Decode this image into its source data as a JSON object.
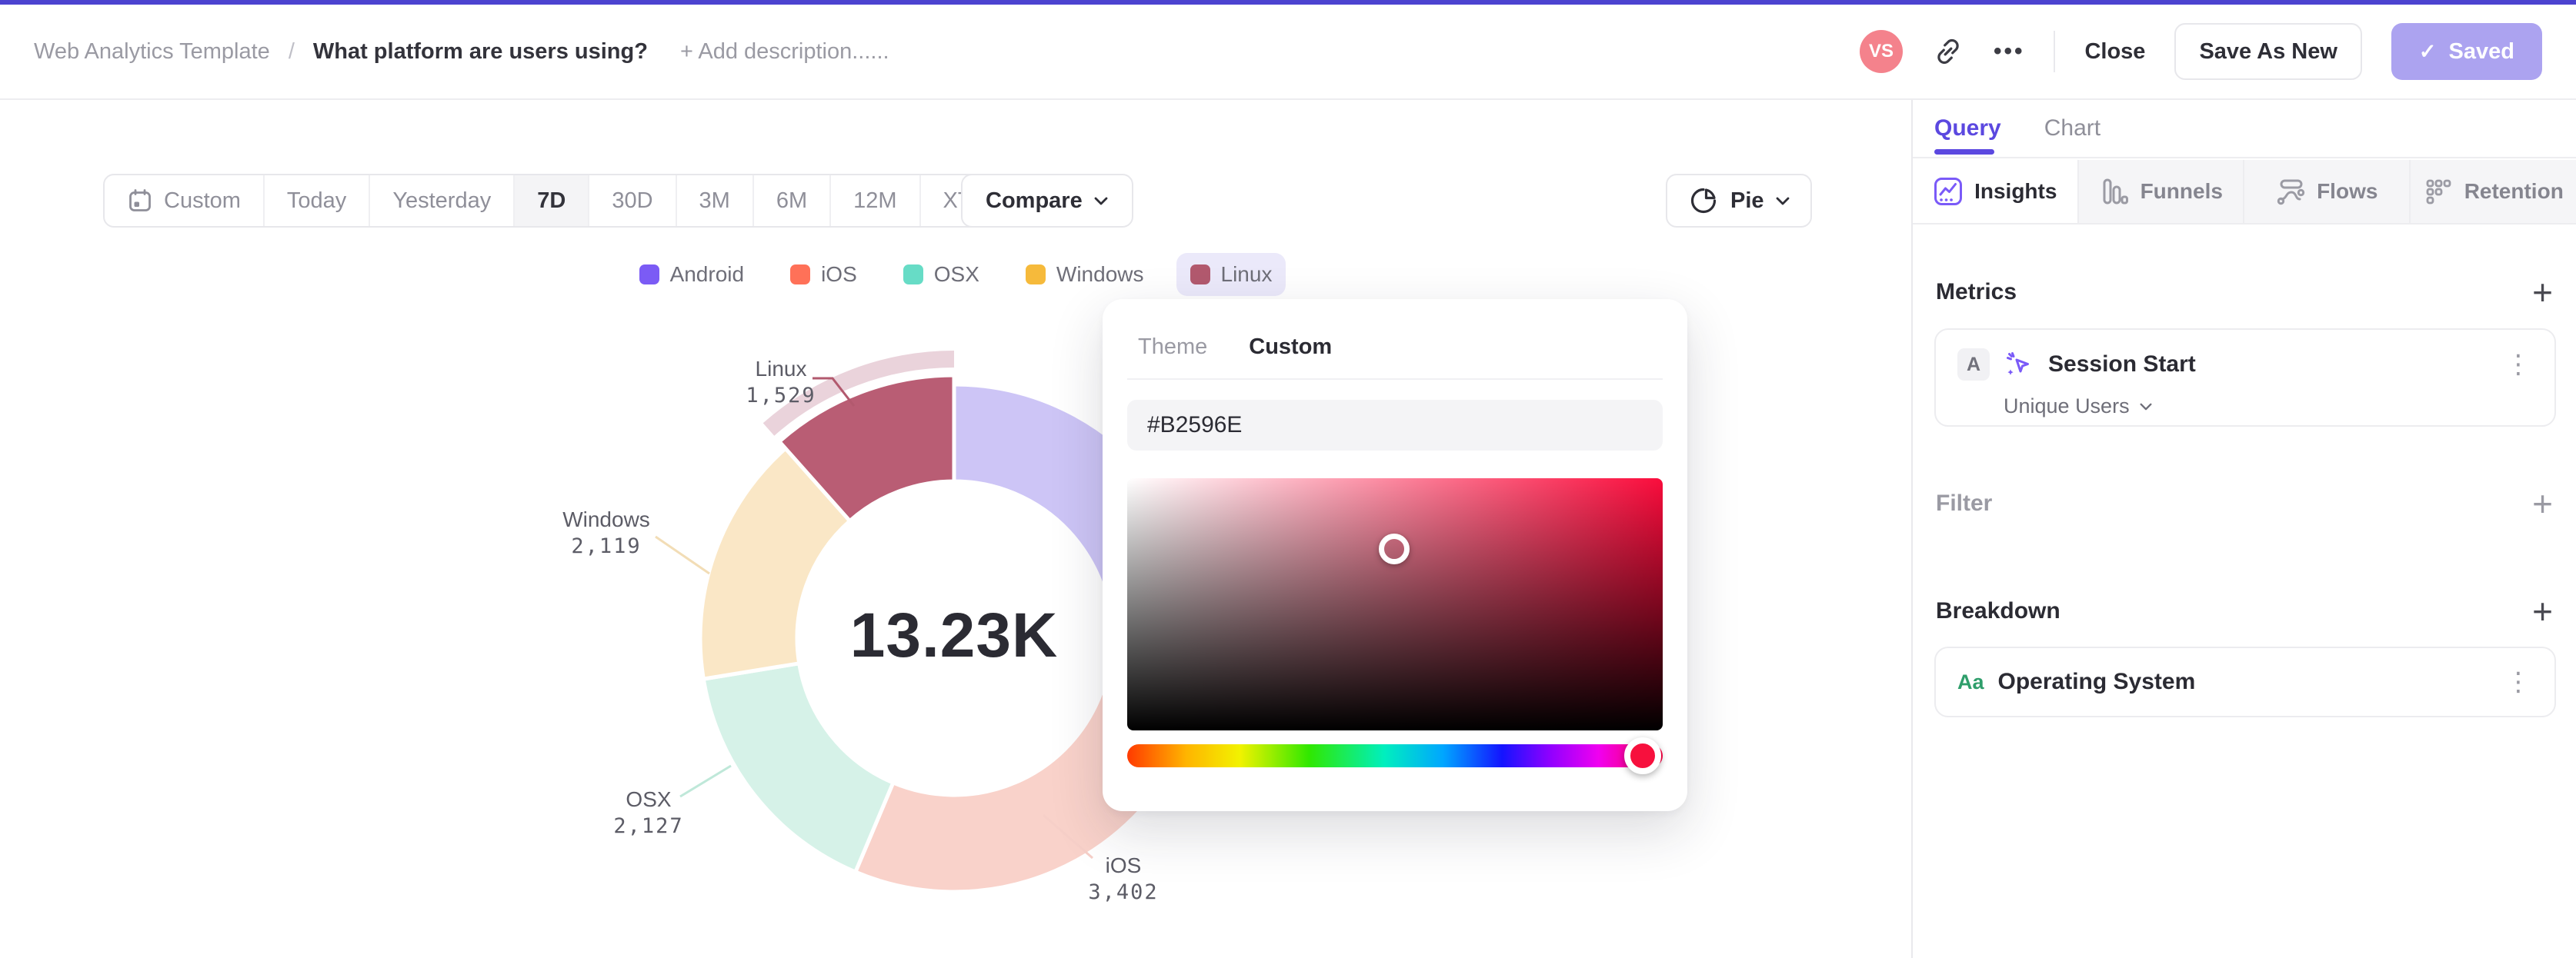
{
  "header": {
    "breadcrumb": "Web Analytics Template",
    "separator": "/",
    "title": "What platform are users using?",
    "add_description": "+ Add description......",
    "avatar_initials": "VS",
    "close_label": "Close",
    "save_as_new_label": "Save As New",
    "saved_label": "Saved",
    "accent_color": "#4C43D0",
    "saved_button_color": "#ACA3F0",
    "avatar_color": "#F4828C"
  },
  "icons": {
    "more": "•••",
    "kebab": "⋮",
    "plus": "+",
    "check": "✓"
  },
  "toolbar": {
    "ranges": [
      "Custom",
      "Today",
      "Yesterday",
      "7D",
      "30D",
      "3M",
      "6M",
      "12M",
      "XTD"
    ],
    "active_range": "7D",
    "compare_label": "Compare",
    "chart_type_label": "Pie"
  },
  "chart_data": {
    "type": "pie",
    "subtype": "donut",
    "categories": [
      "Android",
      "iOS",
      "OSX",
      "Windows",
      "Linux"
    ],
    "values": [
      4053,
      3402,
      2127,
      2119,
      1529
    ],
    "center_total": "13.23K",
    "selected_slice": "Linux",
    "legend_position": "top",
    "legend_colors": [
      "#7B5BF5",
      "#FF7158",
      "#67DCC6",
      "#F6BA3B",
      "#B2596E"
    ],
    "slice_colors": [
      "#CDC5F6",
      "#F9D2CA",
      "#D6F2E8",
      "#FAE7C6",
      "#B95D74"
    ],
    "selected_band_color": "#EAD3DB",
    "callouts": [
      {
        "label": "Linux",
        "value": "1,529"
      },
      {
        "label": "Windows",
        "value": "2,119"
      },
      {
        "label": "OSX",
        "value": "2,127"
      },
      {
        "label": "iOS",
        "value": "3,402"
      }
    ]
  },
  "color_picker": {
    "tab_theme": "Theme",
    "tab_custom": "Custom",
    "active_tab": "Custom",
    "hex_value": "#B2596E",
    "hue_color": "#F7103D"
  },
  "sidebar": {
    "tab_query": "Query",
    "tab_chart": "Chart",
    "active_tab": "Query",
    "view_tabs": [
      "Insights",
      "Funnels",
      "Flows",
      "Retention"
    ],
    "active_view_tab": "Insights",
    "metrics": {
      "header": "Metrics",
      "series_badge": "A",
      "event_name": "Session Start",
      "aggregation": "Unique Users"
    },
    "filter": {
      "header": "Filter"
    },
    "breakdown": {
      "header": "Breakdown",
      "badge": "Aa",
      "property": "Operating System",
      "badge_color": "#2F9E6B"
    }
  }
}
